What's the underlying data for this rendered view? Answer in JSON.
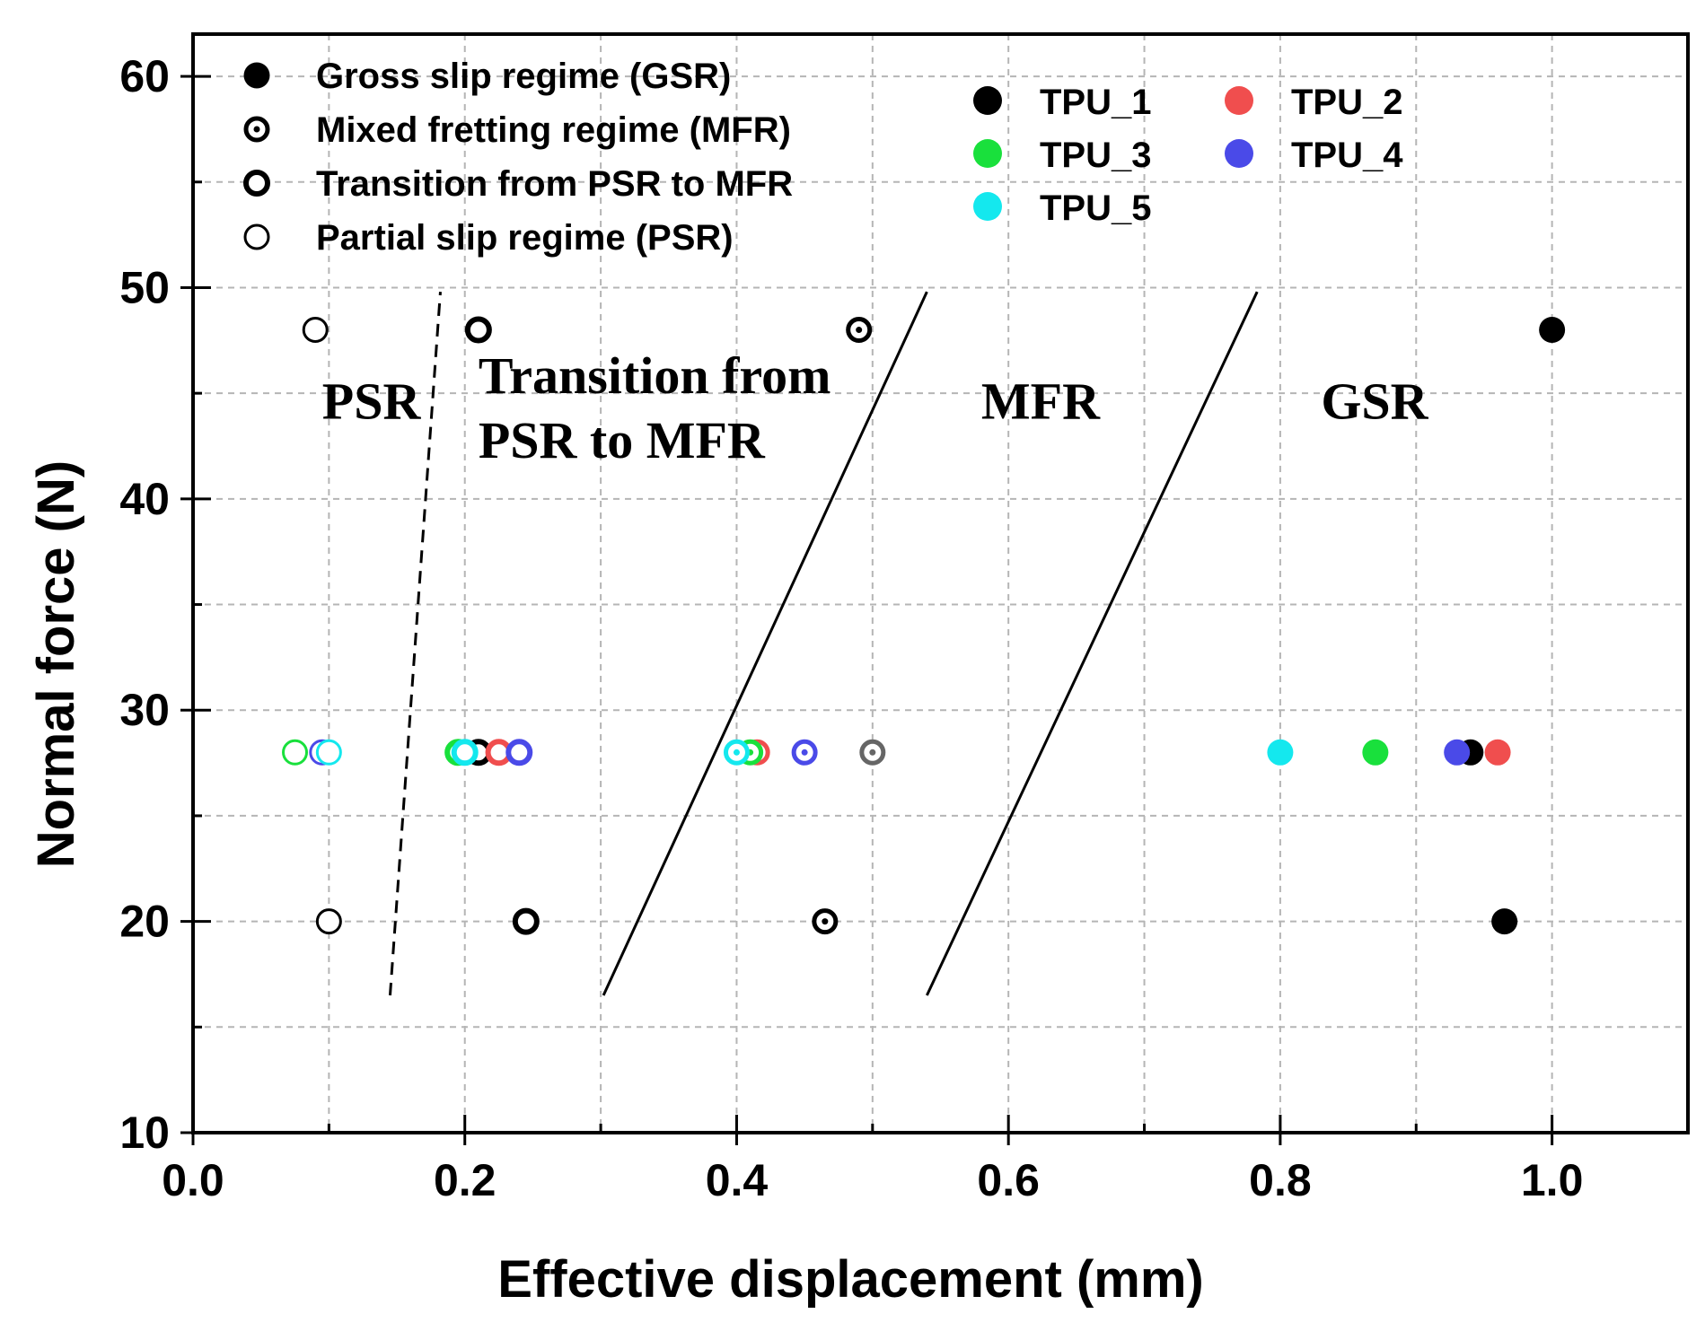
{
  "chart_data": {
    "type": "scatter",
    "title": "",
    "xlabel": "Effective displacement (mm)",
    "ylabel": "Normal force (N)",
    "xlim": [
      0.0,
      1.1
    ],
    "ylim": [
      10,
      62
    ],
    "grid": true,
    "x_ticks": [
      0.0,
      0.2,
      0.4,
      0.6,
      0.8,
      1.0
    ],
    "x_tick_labels": [
      "0.0",
      "0.2",
      "0.4",
      "0.6",
      "0.8",
      "1.0"
    ],
    "y_ticks": [
      10,
      20,
      30,
      40,
      50,
      60
    ],
    "y_tick_labels": [
      "10",
      "20",
      "30",
      "40",
      "50",
      "60"
    ],
    "regime_legend": [
      {
        "key": "GSR",
        "label": "Gross slip regime (GSR)"
      },
      {
        "key": "MFR",
        "label": "Mixed fretting regime (MFR)"
      },
      {
        "key": "TRANS",
        "label": "Transition from PSR to MFR"
      },
      {
        "key": "PSR",
        "label": "Partial slip regime (PSR)"
      }
    ],
    "series": [
      {
        "name": "TPU_1",
        "color": "#000000",
        "points": [
          {
            "x": 0.09,
            "y": 48,
            "regime": "PSR"
          },
          {
            "x": 0.21,
            "y": 48,
            "regime": "TRANS"
          },
          {
            "x": 0.49,
            "y": 48,
            "regime": "MFR"
          },
          {
            "x": 1.0,
            "y": 48,
            "regime": "GSR"
          },
          {
            "x": 0.1,
            "y": 20,
            "regime": "PSR"
          },
          {
            "x": 0.245,
            "y": 20,
            "regime": "TRANS"
          },
          {
            "x": 0.465,
            "y": 20,
            "regime": "MFR"
          },
          {
            "x": 0.965,
            "y": 20,
            "regime": "GSR"
          },
          {
            "x": 0.21,
            "y": 28,
            "regime": "TRANS"
          },
          {
            "x": 0.94,
            "y": 28,
            "regime": "GSR"
          }
        ]
      },
      {
        "name": "TPU_2",
        "color": "#f04e4e",
        "points": [
          {
            "x": 0.225,
            "y": 28,
            "regime": "TRANS"
          },
          {
            "x": 0.415,
            "y": 28,
            "regime": "MFR"
          },
          {
            "x": 0.96,
            "y": 28,
            "regime": "GSR"
          }
        ]
      },
      {
        "name": "TPU_3",
        "color": "#19e03c",
        "points": [
          {
            "x": 0.075,
            "y": 28,
            "regime": "PSR"
          },
          {
            "x": 0.195,
            "y": 28,
            "regime": "TRANS"
          },
          {
            "x": 0.41,
            "y": 28,
            "regime": "MFR"
          },
          {
            "x": 0.87,
            "y": 28,
            "regime": "GSR"
          }
        ]
      },
      {
        "name": "TPU_4",
        "color": "#4a4ae8",
        "points": [
          {
            "x": 0.095,
            "y": 28,
            "regime": "PSR"
          },
          {
            "x": 0.24,
            "y": 28,
            "regime": "TRANS"
          },
          {
            "x": 0.45,
            "y": 28,
            "regime": "MFR"
          },
          {
            "x": 0.93,
            "y": 28,
            "regime": "GSR"
          }
        ]
      },
      {
        "name": "TPU_5",
        "color": "#14e8ee",
        "points": [
          {
            "x": 0.1,
            "y": 28,
            "regime": "PSR"
          },
          {
            "x": 0.2,
            "y": 28,
            "regime": "TRANS"
          },
          {
            "x": 0.4,
            "y": 28,
            "regime": "MFR"
          },
          {
            "x": 0.8,
            "y": 28,
            "regime": "GSR"
          }
        ]
      },
      {
        "name": "gray",
        "color": "#666666",
        "in_legend": false,
        "points": [
          {
            "x": 0.5,
            "y": 28,
            "regime": "MFR"
          }
        ]
      }
    ],
    "boundaries": [
      {
        "name": "PSR-transition boundary",
        "style": "dashed",
        "from": [
          0.145,
          16.5
        ],
        "to": [
          0.182,
          49.8
        ]
      },
      {
        "name": "transition-MFR boundary",
        "style": "solid",
        "from": [
          0.302,
          16.5
        ],
        "to": [
          0.54,
          49.8
        ]
      },
      {
        "name": "MFR-GSR boundary",
        "style": "solid",
        "from": [
          0.54,
          16.5
        ],
        "to": [
          0.783,
          49.8
        ]
      }
    ],
    "region_labels": [
      {
        "lines": [
          "PSR"
        ],
        "x": 0.095,
        "y": 43.8
      },
      {
        "lines": [
          "Transition from",
          "PSR to MFR"
        ],
        "x": 0.21,
        "y": 45.0
      },
      {
        "lines": [
          "MFR"
        ],
        "x": 0.58,
        "y": 43.8
      },
      {
        "lines": [
          "GSR"
        ],
        "x": 0.83,
        "y": 43.8
      }
    ]
  }
}
